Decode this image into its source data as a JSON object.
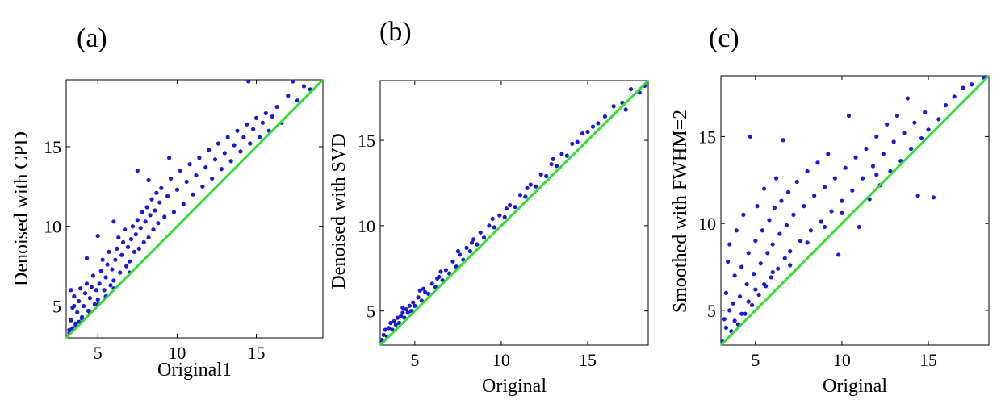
{
  "colors": {
    "points": "#1a1ad8",
    "identity_line": "#33dd33",
    "axes": "#000000"
  },
  "chart_data": [
    {
      "type": "scatter",
      "panel_label": "(a)",
      "xlabel": "Original1",
      "ylabel": "Denoised with CPD",
      "xlim": [
        3,
        19.2
      ],
      "ylim": [
        3,
        19.2
      ],
      "xticks": [
        5,
        10,
        15
      ],
      "yticks": [
        5,
        10,
        15
      ],
      "reference_line": [
        [
          3,
          3
        ],
        [
          19.2,
          19.2
        ]
      ],
      "points": [
        [
          3.2,
          3.5
        ],
        [
          3.3,
          4.1
        ],
        [
          3.4,
          4.9
        ],
        [
          3.5,
          5.6
        ],
        [
          3.3,
          6.0
        ],
        [
          3.6,
          3.9
        ],
        [
          3.7,
          4.6
        ],
        [
          3.8,
          5.3
        ],
        [
          3.9,
          6.1
        ],
        [
          3.5,
          5.0
        ],
        [
          4.0,
          4.3
        ],
        [
          4.1,
          5.0
        ],
        [
          4.2,
          5.8
        ],
        [
          4.3,
          6.4
        ],
        [
          4.4,
          4.7
        ],
        [
          4.5,
          5.5
        ],
        [
          4.6,
          6.2
        ],
        [
          4.7,
          6.9
        ],
        [
          4.8,
          5.1
        ],
        [
          4.9,
          6.0
        ],
        [
          5.0,
          5.4
        ],
        [
          5.1,
          6.4
        ],
        [
          5.2,
          7.2
        ],
        [
          5.3,
          7.9
        ],
        [
          5.4,
          6.0
        ],
        [
          5.5,
          6.8
        ],
        [
          5.6,
          7.6
        ],
        [
          5.7,
          8.4
        ],
        [
          5.8,
          6.3
        ],
        [
          5.9,
          7.3
        ],
        [
          6.0,
          6.6
        ],
        [
          6.1,
          7.9
        ],
        [
          6.2,
          8.6
        ],
        [
          6.3,
          9.3
        ],
        [
          6.4,
          7.1
        ],
        [
          6.5,
          8.2
        ],
        [
          6.6,
          9.0
        ],
        [
          6.7,
          9.8
        ],
        [
          6.8,
          7.5
        ],
        [
          6.9,
          8.7
        ],
        [
          7.0,
          7.8
        ],
        [
          7.1,
          9.2
        ],
        [
          7.2,
          10.0
        ],
        [
          7.3,
          8.4
        ],
        [
          7.4,
          9.5
        ],
        [
          7.5,
          10.4
        ],
        [
          7.6,
          8.6
        ],
        [
          7.7,
          9.9
        ],
        [
          7.8,
          10.9
        ],
        [
          7.9,
          9.0
        ],
        [
          8.0,
          10.3
        ],
        [
          8.1,
          11.2
        ],
        [
          8.2,
          9.3
        ],
        [
          8.3,
          10.7
        ],
        [
          8.4,
          11.7
        ],
        [
          8.5,
          9.8
        ],
        [
          8.6,
          11.0
        ],
        [
          8.7,
          12.1
        ],
        [
          8.8,
          10.2
        ],
        [
          8.9,
          11.5
        ],
        [
          9.0,
          12.4
        ],
        [
          9.2,
          10.6
        ],
        [
          9.4,
          11.9
        ],
        [
          9.6,
          13.0
        ],
        [
          9.8,
          10.9
        ],
        [
          10.0,
          12.3
        ],
        [
          10.2,
          13.5
        ],
        [
          10.4,
          11.4
        ],
        [
          10.6,
          12.8
        ],
        [
          10.8,
          13.9
        ],
        [
          11.0,
          12.0
        ],
        [
          11.2,
          13.2
        ],
        [
          11.4,
          14.3
        ],
        [
          11.6,
          12.5
        ],
        [
          11.8,
          13.7
        ],
        [
          12.0,
          14.8
        ],
        [
          12.2,
          13.0
        ],
        [
          12.4,
          14.2
        ],
        [
          12.6,
          15.2
        ],
        [
          12.8,
          13.6
        ],
        [
          13.0,
          14.6
        ],
        [
          13.2,
          15.6
        ],
        [
          13.4,
          14.1
        ],
        [
          13.6,
          15.1
        ],
        [
          13.8,
          16.0
        ],
        [
          14.0,
          14.7
        ],
        [
          14.2,
          15.6
        ],
        [
          14.4,
          16.4
        ],
        [
          14.5,
          19.1
        ],
        [
          14.6,
          15.2
        ],
        [
          14.8,
          16.1
        ],
        [
          15.0,
          16.8
        ],
        [
          15.2,
          15.6
        ],
        [
          15.4,
          16.5
        ],
        [
          15.6,
          17.1
        ],
        [
          15.8,
          16.0
        ],
        [
          16.0,
          16.9
        ],
        [
          16.3,
          17.5
        ],
        [
          16.6,
          16.5
        ],
        [
          17.0,
          18.2
        ],
        [
          17.3,
          19.1
        ],
        [
          17.6,
          17.9
        ],
        [
          18.0,
          18.8
        ],
        [
          18.4,
          18.6
        ],
        [
          4.3,
          8.0
        ],
        [
          5.0,
          9.4
        ],
        [
          6.0,
          10.3
        ],
        [
          7.5,
          13.5
        ],
        [
          8.2,
          12.9
        ],
        [
          9.5,
          14.3
        ],
        [
          3.2,
          3.3
        ],
        [
          3.4,
          3.6
        ],
        [
          3.6,
          3.8
        ],
        [
          3.8,
          4.0
        ],
        [
          4.0,
          4.2
        ],
        [
          4.5,
          4.6
        ],
        [
          5.0,
          5.1
        ],
        [
          5.5,
          5.6
        ],
        [
          6.0,
          6.1
        ],
        [
          7.0,
          7.1
        ]
      ]
    },
    {
      "type": "scatter",
      "panel_label": "(b)",
      "xlabel": "Original",
      "ylabel": "Denoised with SVD",
      "xlim": [
        3,
        18.5
      ],
      "ylim": [
        3,
        18.5
      ],
      "xticks": [
        5,
        10,
        15
      ],
      "yticks": [
        5,
        10,
        15
      ],
      "reference_line": [
        [
          3,
          3
        ],
        [
          18.5,
          18.5
        ]
      ],
      "points": [
        [
          3.1,
          3.3
        ],
        [
          3.2,
          3.6
        ],
        [
          3.3,
          3.9
        ],
        [
          3.4,
          3.5
        ],
        [
          3.5,
          4.0
        ],
        [
          3.6,
          4.3
        ],
        [
          3.7,
          3.9
        ],
        [
          3.8,
          4.4
        ],
        [
          3.9,
          4.2
        ],
        [
          4.0,
          4.6
        ],
        [
          4.1,
          4.3
        ],
        [
          4.2,
          4.7
        ],
        [
          4.3,
          4.9
        ],
        [
          4.4,
          4.6
        ],
        [
          4.5,
          5.1
        ],
        [
          4.6,
          4.9
        ],
        [
          4.7,
          5.3
        ],
        [
          4.8,
          5.0
        ],
        [
          4.9,
          5.5
        ],
        [
          5.0,
          5.3
        ],
        [
          5.2,
          5.8
        ],
        [
          5.4,
          5.6
        ],
        [
          5.6,
          6.1
        ],
        [
          5.8,
          6.0
        ],
        [
          6.0,
          6.6
        ],
        [
          6.2,
          6.4
        ],
        [
          6.4,
          7.0
        ],
        [
          6.6,
          6.8
        ],
        [
          6.8,
          7.4
        ],
        [
          7.0,
          7.2
        ],
        [
          7.2,
          7.9
        ],
        [
          7.4,
          7.6
        ],
        [
          7.6,
          8.3
        ],
        [
          7.8,
          8.0
        ],
        [
          8.0,
          8.7
        ],
        [
          8.2,
          8.5
        ],
        [
          8.4,
          9.2
        ],
        [
          8.6,
          8.9
        ],
        [
          8.8,
          9.6
        ],
        [
          9.0,
          9.3
        ],
        [
          9.3,
          10.0
        ],
        [
          9.6,
          9.9
        ],
        [
          9.9,
          10.6
        ],
        [
          10.2,
          10.5
        ],
        [
          10.5,
          11.2
        ],
        [
          10.8,
          11.1
        ],
        [
          11.1,
          11.8
        ],
        [
          11.4,
          11.7
        ],
        [
          11.7,
          12.4
        ],
        [
          12.0,
          12.3
        ],
        [
          12.3,
          13.0
        ],
        [
          12.6,
          12.9
        ],
        [
          12.9,
          13.6
        ],
        [
          13.2,
          13.5
        ],
        [
          13.5,
          14.2
        ],
        [
          13.8,
          14.1
        ],
        [
          14.1,
          14.8
        ],
        [
          14.4,
          14.9
        ],
        [
          14.7,
          15.4
        ],
        [
          15.0,
          15.5
        ],
        [
          15.3,
          15.8
        ],
        [
          15.6,
          16.0
        ],
        [
          16.0,
          16.4
        ],
        [
          16.5,
          17.0
        ],
        [
          17.0,
          17.2
        ],
        [
          17.5,
          18.0
        ],
        [
          18.0,
          17.8
        ],
        [
          18.3,
          18.2
        ],
        [
          17.2,
          16.8
        ],
        [
          5.5,
          6.3
        ],
        [
          6.5,
          7.3
        ],
        [
          7.5,
          8.5
        ],
        [
          9.5,
          10.4
        ],
        [
          11.5,
          12.2
        ],
        [
          13.0,
          13.9
        ],
        [
          4.3,
          5.2
        ],
        [
          5.3,
          6.2
        ],
        [
          6.3,
          6.9
        ],
        [
          8.3,
          9.0
        ],
        [
          10.3,
          11.0
        ]
      ]
    },
    {
      "type": "scatter",
      "panel_label": "(c)",
      "xlabel": "Original",
      "ylabel": "Smoothed with FWHM=2",
      "xlim": [
        3,
        18.5
      ],
      "ylim": [
        3,
        18.5
      ],
      "xticks": [
        5,
        10,
        15
      ],
      "yticks": [
        5,
        10,
        15
      ],
      "reference_line": [
        [
          3,
          3
        ],
        [
          18.5,
          18.5
        ]
      ],
      "points": [
        [
          3.1,
          3.2
        ],
        [
          3.2,
          4.5
        ],
        [
          3.3,
          6.0
        ],
        [
          3.4,
          7.8
        ],
        [
          3.5,
          8.8
        ],
        [
          3.6,
          3.8
        ],
        [
          3.7,
          5.4
        ],
        [
          3.8,
          7.0
        ],
        [
          3.9,
          9.6
        ],
        [
          4.0,
          4.2
        ],
        [
          4.1,
          5.8
        ],
        [
          4.2,
          7.5
        ],
        [
          4.3,
          10.5
        ],
        [
          4.4,
          4.8
        ],
        [
          4.5,
          6.5
        ],
        [
          4.6,
          8.3
        ],
        [
          4.7,
          15.0
        ],
        [
          4.8,
          5.3
        ],
        [
          4.9,
          7.1
        ],
        [
          5.0,
          9.0
        ],
        [
          5.1,
          11.0
        ],
        [
          5.2,
          5.9
        ],
        [
          5.3,
          7.7
        ],
        [
          5.4,
          9.6
        ],
        [
          5.5,
          12.0
        ],
        [
          5.6,
          6.4
        ],
        [
          5.7,
          8.3
        ],
        [
          5.8,
          10.2
        ],
        [
          5.9,
          6.9
        ],
        [
          6.0,
          8.8
        ],
        [
          6.1,
          10.9
        ],
        [
          6.2,
          12.6
        ],
        [
          6.3,
          7.4
        ],
        [
          6.4,
          9.4
        ],
        [
          6.5,
          11.3
        ],
        [
          6.6,
          14.8
        ],
        [
          6.7,
          8.0
        ],
        [
          6.8,
          9.9
        ],
        [
          6.9,
          11.8
        ],
        [
          7.0,
          8.4
        ],
        [
          7.2,
          10.5
        ],
        [
          7.4,
          12.4
        ],
        [
          7.6,
          9.0
        ],
        [
          7.8,
          11.0
        ],
        [
          8.0,
          13.0
        ],
        [
          8.2,
          9.6
        ],
        [
          8.4,
          11.6
        ],
        [
          8.6,
          13.5
        ],
        [
          8.8,
          10.1
        ],
        [
          9.0,
          12.1
        ],
        [
          9.2,
          14.0
        ],
        [
          9.4,
          10.7
        ],
        [
          9.6,
          12.6
        ],
        [
          9.8,
          8.2
        ],
        [
          10.0,
          11.3
        ],
        [
          10.2,
          13.2
        ],
        [
          10.4,
          16.2
        ],
        [
          10.6,
          11.9
        ],
        [
          10.8,
          13.8
        ],
        [
          11.0,
          9.8
        ],
        [
          11.2,
          12.6
        ],
        [
          11.4,
          14.3
        ],
        [
          11.6,
          11.4
        ],
        [
          11.8,
          13.3
        ],
        [
          12.0,
          15.0
        ],
        [
          12.2,
          12.2
        ],
        [
          12.4,
          14.0
        ],
        [
          12.6,
          15.7
        ],
        [
          12.8,
          13.0
        ],
        [
          13.0,
          14.7
        ],
        [
          13.2,
          16.2
        ],
        [
          13.4,
          13.6
        ],
        [
          13.6,
          15.2
        ],
        [
          13.8,
          17.2
        ],
        [
          14.0,
          14.3
        ],
        [
          14.2,
          15.8
        ],
        [
          14.4,
          11.6
        ],
        [
          14.6,
          14.9
        ],
        [
          14.8,
          16.4
        ],
        [
          15.0,
          15.4
        ],
        [
          15.3,
          11.5
        ],
        [
          15.6,
          16.0
        ],
        [
          16.0,
          16.8
        ],
        [
          16.5,
          17.3
        ],
        [
          17.0,
          17.8
        ],
        [
          17.5,
          18.0
        ],
        [
          18.2,
          18.4
        ],
        [
          3.3,
          4.0
        ],
        [
          3.5,
          5.0
        ],
        [
          3.8,
          4.4
        ],
        [
          4.2,
          4.8
        ],
        [
          4.6,
          5.5
        ],
        [
          5.0,
          6.2
        ],
        [
          5.5,
          6.5
        ],
        [
          6.0,
          7.2
        ],
        [
          7.0,
          7.6
        ],
        [
          8.0,
          8.9
        ],
        [
          9.0,
          9.8
        ],
        [
          10.0,
          10.6
        ],
        [
          12.0,
          12.8
        ]
      ]
    }
  ]
}
